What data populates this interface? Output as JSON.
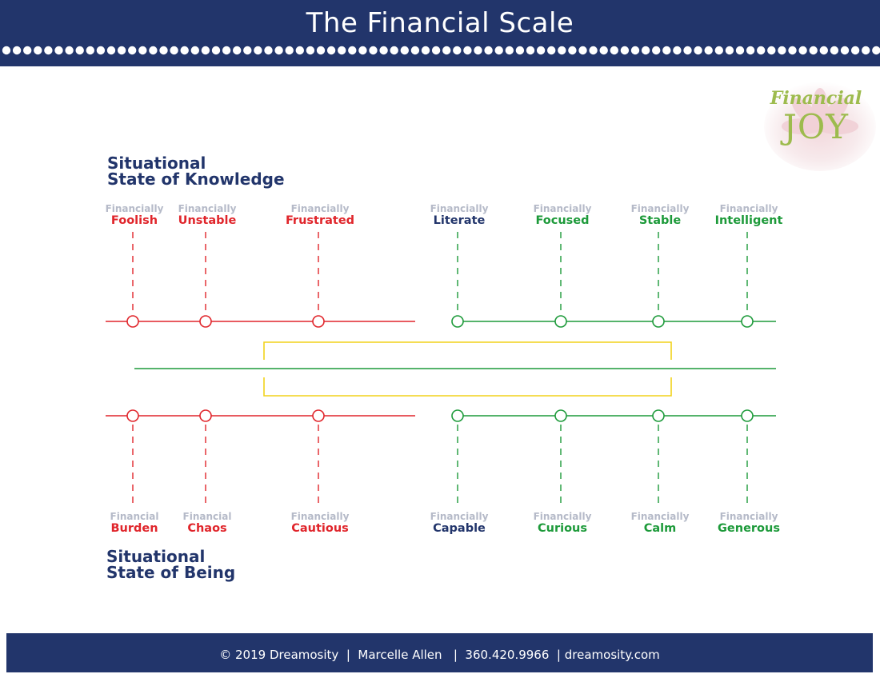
{
  "header": {
    "title": "The Financial Scale"
  },
  "logo": {
    "word1": "Financial",
    "word2": "JOY"
  },
  "top_section": {
    "line1": "Situational",
    "line2": "State of Knowledge"
  },
  "bottom_section": {
    "line1": "Situational",
    "line2": "State of Being"
  },
  "top_nodes": [
    {
      "prefix": "Financially",
      "word": "Foolish",
      "polarity": "negative"
    },
    {
      "prefix": "Financially",
      "word": "Unstable",
      "polarity": "negative"
    },
    {
      "prefix": "Financially",
      "word": "Frustrated",
      "polarity": "negative"
    },
    {
      "prefix": "Financially",
      "word": "Literate",
      "polarity": "neutral"
    },
    {
      "prefix": "Financially",
      "word": "Focused",
      "polarity": "positive"
    },
    {
      "prefix": "Financially",
      "word": "Stable",
      "polarity": "positive"
    },
    {
      "prefix": "Financially",
      "word": "Intelligent",
      "polarity": "positive"
    }
  ],
  "bottom_nodes": [
    {
      "prefix": "Financial",
      "word": "Burden",
      "polarity": "negative"
    },
    {
      "prefix": "Financial",
      "word": "Chaos",
      "polarity": "negative"
    },
    {
      "prefix": "Financially",
      "word": "Cautious",
      "polarity": "negative"
    },
    {
      "prefix": "Financially",
      "word": "Capable",
      "polarity": "neutral"
    },
    {
      "prefix": "Financially",
      "word": "Curious",
      "polarity": "positive"
    },
    {
      "prefix": "Financially",
      "word": "Calm",
      "polarity": "positive"
    },
    {
      "prefix": "Financially",
      "word": "Generous",
      "polarity": "positive"
    }
  ],
  "colors": {
    "navy": "#22356b",
    "negative": "#e0252b",
    "positive": "#1d9a3a",
    "neutral": "#22356b",
    "prefix": "#b5bac8",
    "bracket": "#f2d21b",
    "logo_green": "#9dbb4d"
  },
  "footer": {
    "text": "© 2019 Dreamosity  |  Marcelle Allen   |  360.420.9966  | dreamosity.com"
  }
}
